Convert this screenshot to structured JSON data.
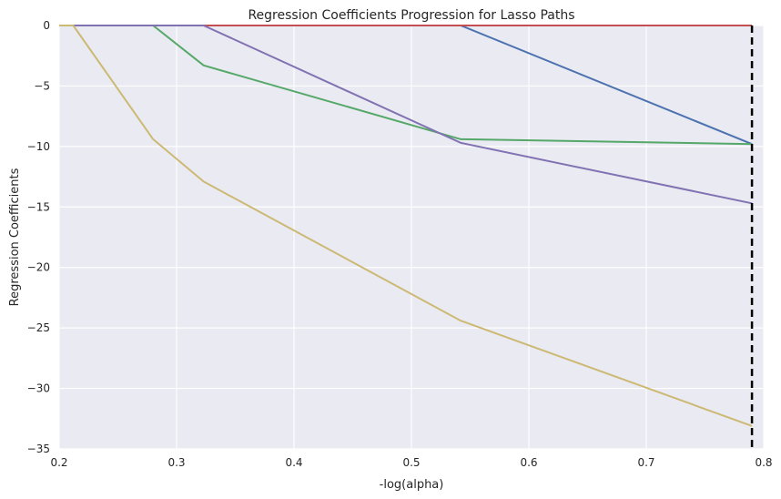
{
  "chart_data": {
    "type": "line",
    "title": "Regression Coefficients Progression for Lasso Paths",
    "xlabel": "-log(alpha)",
    "ylabel": "Regression Coefficients",
    "xlim": [
      0.2,
      0.8
    ],
    "ylim": [
      -35,
      0
    ],
    "xticks": [
      0.2,
      0.3,
      0.4,
      0.5,
      0.6,
      0.7,
      0.8
    ],
    "xtick_labels": [
      "0.2",
      "0.3",
      "0.4",
      "0.5",
      "0.6",
      "0.7",
      "0.8"
    ],
    "yticks": [
      0,
      -5,
      -10,
      -15,
      -20,
      -25,
      -30,
      -35
    ],
    "ytick_labels": [
      "0",
      "−5",
      "−10",
      "−15",
      "−20",
      "−25",
      "−30",
      "−35"
    ],
    "grid": true,
    "background": "#eaeaf2",
    "series": [
      {
        "color": "#4c72b0",
        "x": [
          0.2,
          0.542,
          0.79
        ],
        "y": [
          0,
          0,
          -9.8
        ]
      },
      {
        "color": "#55a868",
        "x": [
          0.2,
          0.28,
          0.323,
          0.542,
          0.79
        ],
        "y": [
          0,
          0,
          -3.3,
          -9.4,
          -9.8
        ]
      },
      {
        "color": "#c44e52",
        "x": [
          0.2,
          0.79
        ],
        "y": [
          0,
          0
        ]
      },
      {
        "color": "#8172b2",
        "x": [
          0.2,
          0.323,
          0.542,
          0.79
        ],
        "y": [
          0,
          0,
          -9.7,
          -14.7
        ]
      },
      {
        "color": "#ccb974",
        "x": [
          0.2,
          0.212,
          0.28,
          0.323,
          0.542,
          0.79
        ],
        "y": [
          0,
          0,
          -9.4,
          -12.9,
          -24.4,
          -33.1
        ]
      }
    ],
    "vline": {
      "x": 0.79,
      "color": "#000000",
      "style": "dashed"
    }
  }
}
